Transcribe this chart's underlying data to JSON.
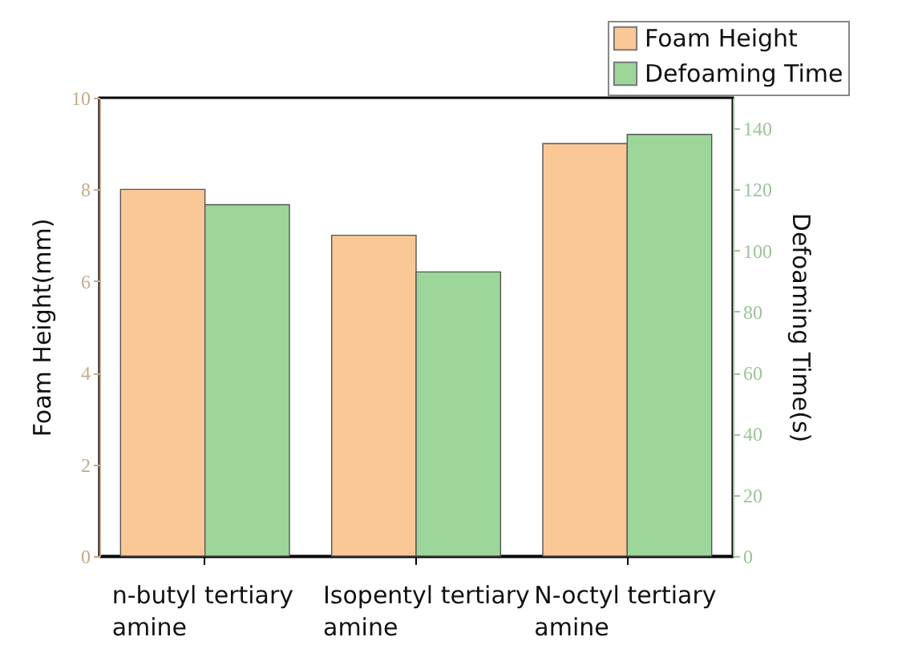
{
  "chart_data": {
    "type": "bar",
    "xlabel": null,
    "ylabel": "Foam Height(mm)",
    "y2label": "Defoaming Time(s)",
    "categories": [
      "n-butyl tertiary amine",
      "Isopentyl tertiary amine",
      "N-octyl tertiary amine"
    ],
    "series": [
      {
        "name": "Foam Height",
        "color": "#fac896",
        "values": [
          8,
          7,
          9
        ]
      },
      {
        "name": "Defoaming Time",
        "color": "#9dd69a",
        "axis": "y2",
        "values": [
          115,
          93,
          138
        ]
      }
    ],
    "ylim": [
      0,
      10
    ],
    "yticks": [
      0,
      2,
      4,
      6,
      8,
      10
    ],
    "y2lim": [
      0,
      150
    ],
    "y2ticks": [
      0,
      20,
      40,
      60,
      80,
      100,
      120,
      140
    ],
    "grid": false,
    "legend": "top right"
  }
}
